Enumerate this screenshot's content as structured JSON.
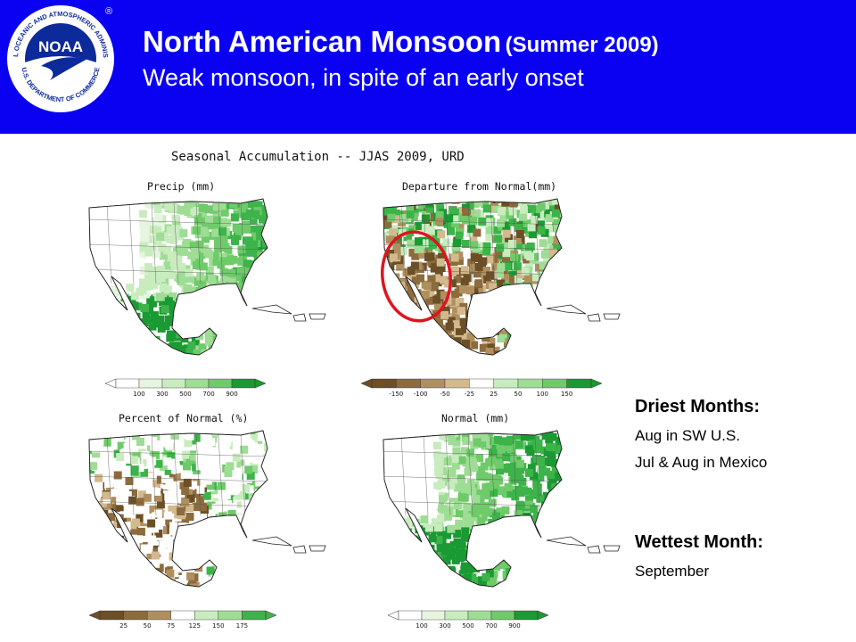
{
  "header": {
    "title": "North American Monsoon",
    "title_paren": "(Summer 2009)",
    "subtitle": "Weak monsoon, in spite of an early onset",
    "background": "#0a00f2"
  },
  "logo": {
    "text": "NOAA",
    "ring_text": "NATIONAL OCEANIC AND ATMOSPHERIC ADMINISTRATION",
    "ring_text_bottom": "U.S. DEPARTMENT OF COMMERCE",
    "registered": "®"
  },
  "figure": {
    "title": "Seasonal Accumulation -- JJAS 2009, URD",
    "panels": [
      {
        "label": "Precip (mm)",
        "ticks": [
          "100",
          "300",
          "500",
          "700",
          "900"
        ]
      },
      {
        "label": "Departure from Normal(mm)",
        "ticks": [
          "-150",
          "-100",
          "-50",
          "-25",
          "25",
          "50",
          "100",
          "150"
        ]
      },
      {
        "label": "Percent of Normal (%)",
        "ticks": [
          "25",
          "50",
          "75",
          "125",
          "150",
          "175"
        ]
      },
      {
        "label": "Normal (mm)",
        "ticks": [
          "100",
          "300",
          "500",
          "700",
          "900"
        ]
      }
    ],
    "colors": {
      "greens": [
        "#ffffff",
        "#e6f5e0",
        "#c8ecbe",
        "#9fdc95",
        "#6fca6a",
        "#3db34a",
        "#1a9a32"
      ],
      "browns": [
        "#6b4f26",
        "#8c6b3c",
        "#b08f5e",
        "#d2b98e"
      ],
      "highlight_ellipse": "#e0141e"
    }
  },
  "notes": {
    "driest_heading": "Driest Months:",
    "driest_lines": [
      "Aug in SW U.S.",
      "Jul & Aug in Mexico"
    ],
    "wettest_heading": "Wettest Month:",
    "wettest_lines": [
      "September"
    ]
  }
}
